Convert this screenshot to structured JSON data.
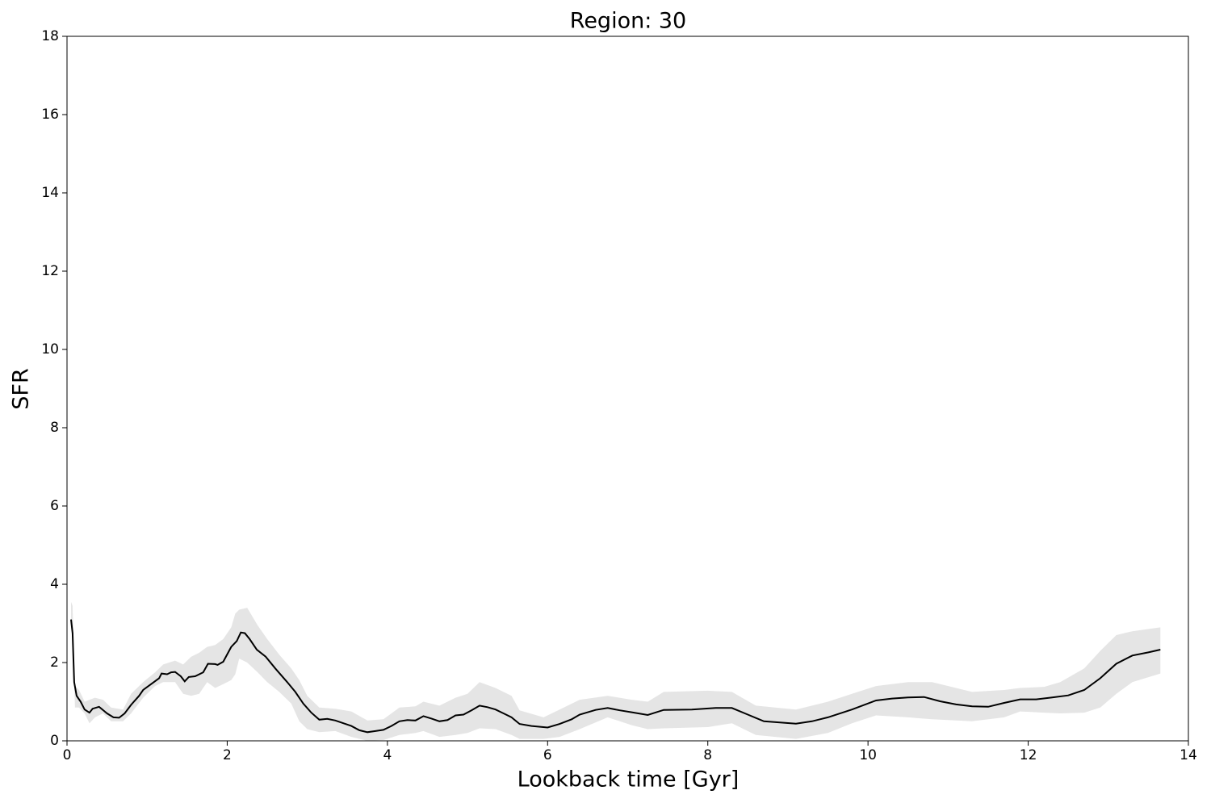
{
  "chart_data": {
    "type": "line",
    "title": "Region: 30",
    "xlabel": "Lookback time [Gyr]",
    "ylabel": "SFR",
    "xlim": [
      0,
      14
    ],
    "ylim": [
      0,
      18
    ],
    "xticks": [
      0,
      2,
      4,
      6,
      8,
      10,
      12,
      14
    ],
    "yticks": [
      0,
      2,
      4,
      6,
      8,
      10,
      12,
      14,
      16,
      18
    ],
    "x": [
      0.05,
      0.07,
      0.09,
      0.12,
      0.17,
      0.22,
      0.28,
      0.32,
      0.4,
      0.5,
      0.58,
      0.65,
      0.72,
      0.8,
      0.9,
      0.95,
      1.05,
      1.15,
      1.18,
      1.25,
      1.3,
      1.35,
      1.42,
      1.47,
      1.52,
      1.6,
      1.7,
      1.76,
      1.85,
      1.88,
      1.95,
      2.05,
      2.12,
      2.17,
      2.22,
      2.28,
      2.37,
      2.48,
      2.6,
      2.75,
      2.85,
      2.95,
      3.05,
      3.15,
      3.25,
      3.35,
      3.45,
      3.55,
      3.65,
      3.75,
      3.85,
      3.95,
      4.05,
      4.15,
      4.25,
      4.35,
      4.45,
      4.55,
      4.65,
      4.75,
      4.85,
      4.95,
      5.05,
      5.15,
      5.25,
      5.35,
      5.45,
      5.55,
      5.65,
      5.8,
      6.0,
      6.15,
      6.3,
      6.4,
      6.6,
      6.75,
      6.9,
      7.05,
      7.25,
      7.45,
      7.8,
      8.1,
      8.3,
      8.5,
      8.7,
      9.1,
      9.3,
      9.5,
      9.8,
      10.1,
      10.3,
      10.5,
      10.7,
      10.9,
      11.1,
      11.3,
      11.5,
      11.7,
      11.9,
      12.1,
      12.3,
      12.5,
      12.7,
      12.9,
      13.1,
      13.3,
      13.5,
      13.65
    ],
    "series": [
      {
        "color": "#000000",
        "values": [
          3.1,
          2.75,
          1.5,
          1.15,
          1.0,
          0.8,
          0.72,
          0.82,
          0.87,
          0.7,
          0.6,
          0.59,
          0.7,
          0.92,
          1.15,
          1.3,
          1.45,
          1.6,
          1.72,
          1.7,
          1.75,
          1.76,
          1.65,
          1.52,
          1.63,
          1.65,
          1.75,
          1.97,
          1.96,
          1.94,
          2.02,
          2.4,
          2.55,
          2.77,
          2.75,
          2.6,
          2.33,
          2.15,
          1.85,
          1.5,
          1.25,
          0.95,
          0.72,
          0.54,
          0.56,
          0.52,
          0.45,
          0.38,
          0.27,
          0.22,
          0.25,
          0.28,
          0.38,
          0.5,
          0.53,
          0.52,
          0.63,
          0.57,
          0.5,
          0.53,
          0.65,
          0.67,
          0.78,
          0.9,
          0.86,
          0.8,
          0.7,
          0.6,
          0.43,
          0.38,
          0.34,
          0.43,
          0.55,
          0.67,
          0.79,
          0.84,
          0.78,
          0.73,
          0.66,
          0.79,
          0.8,
          0.84,
          0.84,
          0.67,
          0.5,
          0.44,
          0.5,
          0.6,
          0.8,
          1.03,
          1.08,
          1.11,
          1.12,
          1.01,
          0.93,
          0.88,
          0.87,
          0.97,
          1.06,
          1.06,
          1.11,
          1.16,
          1.3,
          1.6,
          1.97,
          2.18,
          2.26,
          2.33
        ]
      }
    ],
    "band": {
      "color": "#e5e5e5",
      "x": [
        0.05,
        0.07,
        0.1,
        0.15,
        0.22,
        0.28,
        0.35,
        0.45,
        0.55,
        0.7,
        0.8,
        0.95,
        1.1,
        1.2,
        1.35,
        1.45,
        1.55,
        1.65,
        1.75,
        1.85,
        1.95,
        2.05,
        2.1,
        2.15,
        2.25,
        2.38,
        2.5,
        2.65,
        2.8,
        2.9,
        3.0,
        3.15,
        3.35,
        3.55,
        3.75,
        3.95,
        4.15,
        4.35,
        4.45,
        4.65,
        4.85,
        5.0,
        5.15,
        5.35,
        5.55,
        5.65,
        5.95,
        6.15,
        6.4,
        6.75,
        7.05,
        7.25,
        7.45,
        8.0,
        8.3,
        8.6,
        9.1,
        9.5,
        9.8,
        10.1,
        10.5,
        10.8,
        11.3,
        11.7,
        11.9,
        12.2,
        12.4,
        12.7,
        12.9,
        13.1,
        13.3,
        13.65
      ],
      "lower": [
        2.9,
        2.6,
        0.85,
        0.85,
        0.7,
        0.45,
        0.6,
        0.7,
        0.5,
        0.5,
        0.7,
        1.1,
        1.4,
        1.5,
        1.5,
        1.2,
        1.15,
        1.2,
        1.5,
        1.35,
        1.45,
        1.55,
        1.7,
        2.1,
        2.0,
        1.75,
        1.5,
        1.25,
        0.95,
        0.5,
        0.3,
        0.22,
        0.25,
        0.1,
        0.0,
        0.02,
        0.15,
        0.2,
        0.25,
        0.1,
        0.15,
        0.2,
        0.32,
        0.3,
        0.15,
        0.05,
        0.05,
        0.1,
        0.3,
        0.6,
        0.4,
        0.3,
        0.32,
        0.35,
        0.45,
        0.15,
        0.05,
        0.2,
        0.45,
        0.65,
        0.6,
        0.55,
        0.5,
        0.6,
        0.75,
        0.72,
        0.7,
        0.72,
        0.85,
        1.2,
        1.5,
        1.72
      ],
      "upper": [
        3.55,
        3.45,
        1.4,
        1.3,
        1.0,
        1.05,
        1.1,
        1.05,
        0.85,
        0.8,
        1.2,
        1.5,
        1.75,
        1.95,
        2.05,
        1.95,
        2.15,
        2.25,
        2.4,
        2.45,
        2.6,
        2.9,
        3.25,
        3.35,
        3.4,
        2.95,
        2.6,
        2.2,
        1.85,
        1.55,
        1.15,
        0.85,
        0.82,
        0.75,
        0.52,
        0.55,
        0.85,
        0.88,
        1.0,
        0.9,
        1.1,
        1.2,
        1.5,
        1.35,
        1.15,
        0.78,
        0.6,
        0.8,
        1.05,
        1.15,
        1.05,
        1.0,
        1.25,
        1.28,
        1.25,
        0.9,
        0.8,
        1.0,
        1.2,
        1.4,
        1.5,
        1.5,
        1.25,
        1.3,
        1.35,
        1.38,
        1.5,
        1.85,
        2.3,
        2.7,
        2.8,
        2.9
      ]
    }
  }
}
